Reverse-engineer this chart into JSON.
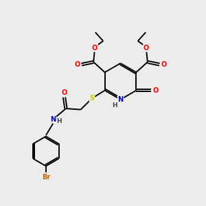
{
  "bg_color": "#ececec",
  "bond_color": "#000000",
  "bond_lw": 1.4,
  "atom_colors": {
    "O": "#ff0000",
    "N": "#0000cc",
    "S": "#cccc00",
    "Br": "#cc6600",
    "C": "#000000",
    "H": "#444444"
  },
  "font_size": 7.0,
  "figsize": [
    3.0,
    3.0
  ],
  "dpi": 100
}
